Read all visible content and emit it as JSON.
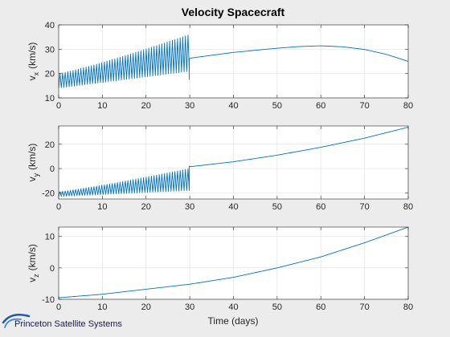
{
  "chart_data": {
    "type": "line",
    "title": "Velocity Spacecraft",
    "xlabel": "Time (days)",
    "color": "#0072bd",
    "panels": [
      {
        "id": "vx",
        "ylabel_main": "v",
        "ylabel_sub": "x",
        "ylabel_unit": "(km/s)",
        "xlim": [
          0,
          80
        ],
        "ylim": [
          10,
          40
        ],
        "xticks": [
          0,
          10,
          20,
          30,
          40,
          50,
          60,
          70,
          80
        ],
        "yticks": [
          10,
          20,
          30,
          40
        ],
        "grid": true,
        "oscillation": {
          "t_start": 0,
          "t_end": 29.9,
          "cycles": 50,
          "lower": [
            14,
            21
          ],
          "upper": [
            20,
            36
          ],
          "final_drop": 17.5
        },
        "smooth": {
          "x": [
            29.9,
            30,
            40,
            50,
            55,
            60,
            65,
            70,
            75,
            80
          ],
          "y": [
            26,
            26.3,
            28.7,
            30.4,
            31.1,
            31.4,
            31.0,
            29.9,
            27.9,
            25
          ]
        }
      },
      {
        "id": "vy",
        "ylabel_main": "v",
        "ylabel_sub": "y",
        "ylabel_unit": "(km/s)",
        "xlim": [
          0,
          80
        ],
        "ylim": [
          -25,
          35
        ],
        "xticks": [
          0,
          10,
          20,
          30,
          40,
          50,
          60,
          70,
          80
        ],
        "yticks": [
          -20,
          0,
          20
        ],
        "grid": true,
        "oscillation": {
          "t_start": 0,
          "t_end": 29.9,
          "cycles": 50,
          "lower": [
            -23,
            -18
          ],
          "upper": [
            -19,
            0
          ],
          "final_drop": -16
        },
        "smooth": {
          "x": [
            29.9,
            30,
            40,
            50,
            60,
            70,
            80
          ],
          "y": [
            2,
            1.5,
            5.6,
            11,
            17.5,
            25,
            34
          ]
        }
      },
      {
        "id": "vz",
        "ylabel_main": "v",
        "ylabel_sub": "z",
        "ylabel_unit": "(km/s)",
        "xlim": [
          0,
          80
        ],
        "ylim": [
          -10,
          13
        ],
        "xticks": [
          0,
          10,
          20,
          30,
          40,
          50,
          60,
          70,
          80
        ],
        "yticks": [
          -10,
          0,
          10
        ],
        "grid": true,
        "smooth": {
          "x": [
            0,
            10,
            20,
            30,
            40,
            50,
            60,
            70,
            80
          ],
          "y": [
            -9.5,
            -8.4,
            -6.8,
            -5.2,
            -3,
            0,
            3.5,
            8,
            13
          ]
        }
      }
    ]
  },
  "logo": {
    "text": "Princeton Satellite Systems"
  }
}
